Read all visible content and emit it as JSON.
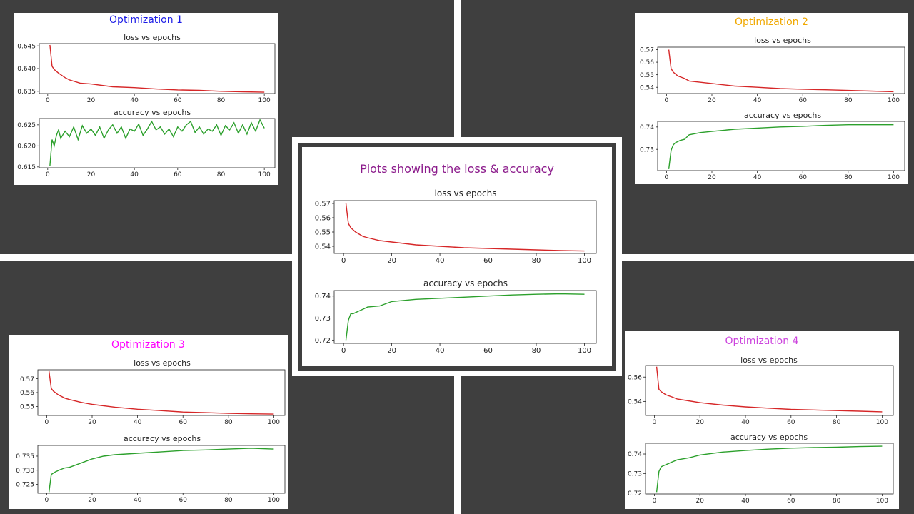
{
  "colors": {
    "loss": "#d62728",
    "accuracy": "#2ca02c",
    "center_title": "#8b1a8b",
    "opt1_title": "#1a1ae6",
    "opt2_title": "#f0a800",
    "opt3_title": "#ff00ff",
    "opt4_title": "#cc44dd"
  },
  "panels": {
    "center": {
      "title": "Plots showing the loss & accuracy",
      "loss_title": "loss vs epochs",
      "acc_title": "accuracy vs epochs"
    },
    "opt1": {
      "title": "Optimization 1",
      "loss_title": "loss vs epochs",
      "acc_title": "accuracy vs epochs"
    },
    "opt2": {
      "title": "Optimization 2",
      "loss_title": "loss vs epochs",
      "acc_title": "accuracy vs epochs"
    },
    "opt3": {
      "title": "Optimization 3",
      "loss_title": "loss vs epochs",
      "acc_title": "accuracy vs epochs"
    },
    "opt4": {
      "title": "Optimization 4",
      "loss_title": "loss vs epochs",
      "acc_title": "accuracy vs epochs"
    }
  },
  "chart_data": [
    {
      "id": "center-loss",
      "type": "line",
      "title": "loss vs epochs",
      "xlim": [
        1,
        100
      ],
      "ylim": [
        0.535,
        0.572
      ],
      "xticks": [
        0,
        20,
        40,
        60,
        80,
        100
      ],
      "yticks": [
        0.54,
        0.55,
        0.56,
        0.57
      ],
      "series": [
        {
          "x": [
            1,
            2,
            3,
            5,
            8,
            10,
            15,
            20,
            30,
            40,
            50,
            60,
            70,
            80,
            90,
            100
          ],
          "y": [
            0.57,
            0.556,
            0.553,
            0.55,
            0.547,
            0.546,
            0.544,
            0.543,
            0.541,
            0.54,
            0.539,
            0.5385,
            0.538,
            0.5375,
            0.537,
            0.5367
          ]
        }
      ]
    },
    {
      "id": "center-acc",
      "type": "line",
      "title": "accuracy vs epochs",
      "xlim": [
        1,
        100
      ],
      "ylim": [
        0.7185,
        0.7425
      ],
      "xticks": [
        0,
        20,
        40,
        60,
        80,
        100
      ],
      "yticks": [
        0.72,
        0.73,
        0.74
      ],
      "series": [
        {
          "x": [
            1,
            2,
            3,
            4,
            6,
            8,
            10,
            15,
            20,
            30,
            40,
            50,
            60,
            70,
            80,
            90,
            100
          ],
          "y": [
            0.72,
            0.729,
            0.732,
            0.732,
            0.733,
            0.734,
            0.735,
            0.7355,
            0.7375,
            0.7385,
            0.739,
            0.7395,
            0.74,
            0.7405,
            0.7408,
            0.741,
            0.7408
          ]
        }
      ]
    },
    {
      "id": "opt1-loss",
      "type": "line",
      "title": "loss vs epochs",
      "xlim": [
        1,
        100
      ],
      "ylim": [
        0.6345,
        0.6455
      ],
      "xticks": [
        0,
        20,
        40,
        60,
        80,
        100
      ],
      "yticks": [
        0.635,
        0.64,
        0.645
      ],
      "series": [
        {
          "x": [
            1,
            2,
            3,
            5,
            8,
            10,
            15,
            20,
            30,
            40,
            50,
            60,
            70,
            80,
            90,
            100
          ],
          "y": [
            0.6452,
            0.6405,
            0.6398,
            0.639,
            0.638,
            0.6375,
            0.6368,
            0.6366,
            0.636,
            0.6358,
            0.6355,
            0.6353,
            0.6352,
            0.635,
            0.6349,
            0.6348
          ]
        }
      ]
    },
    {
      "id": "opt1-acc",
      "type": "line",
      "title": "accuracy vs epochs",
      "xlim": [
        1,
        100
      ],
      "ylim": [
        0.6148,
        0.6265
      ],
      "xticks": [
        0,
        20,
        40,
        60,
        80,
        100
      ],
      "yticks": [
        0.615,
        0.62,
        0.625
      ],
      "series": [
        {
          "x": [
            1,
            2,
            3,
            4,
            5,
            6,
            8,
            10,
            12,
            14,
            16,
            18,
            20,
            22,
            24,
            26,
            28,
            30,
            32,
            34,
            36,
            38,
            40,
            42,
            44,
            46,
            48,
            50,
            52,
            54,
            56,
            58,
            60,
            62,
            64,
            66,
            68,
            70,
            72,
            74,
            76,
            78,
            80,
            82,
            84,
            86,
            88,
            90,
            92,
            94,
            96,
            98,
            100
          ],
          "y": [
            0.6153,
            0.6215,
            0.62,
            0.6225,
            0.6238,
            0.6218,
            0.6235,
            0.6222,
            0.6245,
            0.6215,
            0.6248,
            0.623,
            0.624,
            0.6225,
            0.6245,
            0.6218,
            0.6238,
            0.625,
            0.623,
            0.6245,
            0.6218,
            0.624,
            0.6235,
            0.6252,
            0.6225,
            0.624,
            0.6258,
            0.6238,
            0.6245,
            0.6228,
            0.624,
            0.6222,
            0.6245,
            0.6235,
            0.625,
            0.6258,
            0.6232,
            0.6245,
            0.6228,
            0.624,
            0.6235,
            0.625,
            0.6225,
            0.6248,
            0.6238,
            0.6255,
            0.623,
            0.625,
            0.6228,
            0.6255,
            0.6235,
            0.6262,
            0.6242
          ]
        }
      ]
    },
    {
      "id": "opt2-loss",
      "type": "line",
      "title": "loss vs epochs",
      "xlim": [
        1,
        100
      ],
      "ylim": [
        0.535,
        0.572
      ],
      "xticks": [
        0,
        20,
        40,
        60,
        80,
        100
      ],
      "yticks": [
        0.54,
        0.55,
        0.56,
        0.57
      ],
      "series": [
        {
          "x": [
            1,
            2,
            3,
            5,
            8,
            10,
            15,
            20,
            30,
            40,
            50,
            60,
            70,
            80,
            90,
            100
          ],
          "y": [
            0.57,
            0.555,
            0.552,
            0.549,
            0.547,
            0.545,
            0.544,
            0.543,
            0.541,
            0.54,
            0.539,
            0.5385,
            0.538,
            0.5375,
            0.537,
            0.5365
          ]
        }
      ]
    },
    {
      "id": "opt2-acc",
      "type": "line",
      "title": "accuracy vs epochs",
      "xlim": [
        1,
        100
      ],
      "ylim": [
        0.7205,
        0.7425
      ],
      "xticks": [
        0,
        20,
        40,
        60,
        80,
        100
      ],
      "yticks": [
        0.73,
        0.74
      ],
      "series": [
        {
          "x": [
            1,
            2,
            3,
            4,
            6,
            8,
            10,
            15,
            20,
            30,
            40,
            50,
            60,
            70,
            80,
            90,
            100
          ],
          "y": [
            0.7212,
            0.7295,
            0.732,
            0.733,
            0.734,
            0.7345,
            0.7365,
            0.7375,
            0.738,
            0.739,
            0.7395,
            0.74,
            0.7403,
            0.7407,
            0.741,
            0.741,
            0.741
          ]
        }
      ]
    },
    {
      "id": "opt3-loss",
      "type": "line",
      "title": "loss vs epochs",
      "xlim": [
        1,
        100
      ],
      "ylim": [
        0.5435,
        0.5765
      ],
      "xticks": [
        0,
        20,
        40,
        60,
        80,
        100
      ],
      "yticks": [
        0.55,
        0.56,
        0.57
      ],
      "series": [
        {
          "x": [
            1,
            2,
            3,
            5,
            8,
            10,
            15,
            20,
            30,
            40,
            50,
            60,
            70,
            80,
            90,
            100
          ],
          "y": [
            0.5755,
            0.563,
            0.561,
            0.5585,
            0.556,
            0.555,
            0.553,
            0.5515,
            0.5495,
            0.548,
            0.547,
            0.546,
            0.5455,
            0.545,
            0.5447,
            0.5445
          ]
        }
      ]
    },
    {
      "id": "opt3-acc",
      "type": "line",
      "title": "accuracy vs epochs",
      "xlim": [
        1,
        100
      ],
      "ylim": [
        0.7218,
        0.7388
      ],
      "xticks": [
        0,
        20,
        40,
        60,
        80,
        100
      ],
      "yticks": [
        0.725,
        0.73,
        0.735
      ],
      "series": [
        {
          "x": [
            1,
            2,
            3,
            4,
            6,
            8,
            10,
            15,
            20,
            25,
            30,
            40,
            50,
            60,
            70,
            80,
            90,
            100
          ],
          "y": [
            0.7222,
            0.7285,
            0.729,
            0.7295,
            0.7302,
            0.7308,
            0.731,
            0.7325,
            0.734,
            0.735,
            0.7355,
            0.736,
            0.7365,
            0.737,
            0.7372,
            0.7375,
            0.7378,
            0.7375
          ]
        }
      ]
    },
    {
      "id": "opt4-loss",
      "type": "line",
      "title": "loss vs epochs",
      "xlim": [
        1,
        100
      ],
      "ylim": [
        0.5285,
        0.5695
      ],
      "xticks": [
        0,
        20,
        40,
        60,
        80,
        100
      ],
      "yticks": [
        0.54,
        0.56
      ],
      "series": [
        {
          "x": [
            1,
            2,
            3,
            5,
            8,
            10,
            15,
            20,
            30,
            40,
            50,
            60,
            70,
            80,
            90,
            100
          ],
          "y": [
            0.5685,
            0.55,
            0.548,
            0.5455,
            0.5435,
            0.542,
            0.5405,
            0.539,
            0.537,
            0.5355,
            0.5345,
            0.5335,
            0.533,
            0.5325,
            0.532,
            0.5315
          ]
        }
      ]
    },
    {
      "id": "opt4-acc",
      "type": "line",
      "title": "accuracy vs epochs",
      "xlim": [
        1,
        100
      ],
      "ylim": [
        0.7195,
        0.7455
      ],
      "xticks": [
        0,
        20,
        40,
        60,
        80,
        100
      ],
      "yticks": [
        0.72,
        0.73,
        0.74
      ],
      "series": [
        {
          "x": [
            1,
            2,
            3,
            4,
            6,
            8,
            10,
            15,
            20,
            30,
            40,
            50,
            60,
            70,
            80,
            90,
            100
          ],
          "y": [
            0.7205,
            0.731,
            0.7335,
            0.734,
            0.735,
            0.736,
            0.737,
            0.738,
            0.7395,
            0.741,
            0.7418,
            0.7425,
            0.743,
            0.7433,
            0.7435,
            0.7438,
            0.744
          ]
        }
      ]
    }
  ]
}
